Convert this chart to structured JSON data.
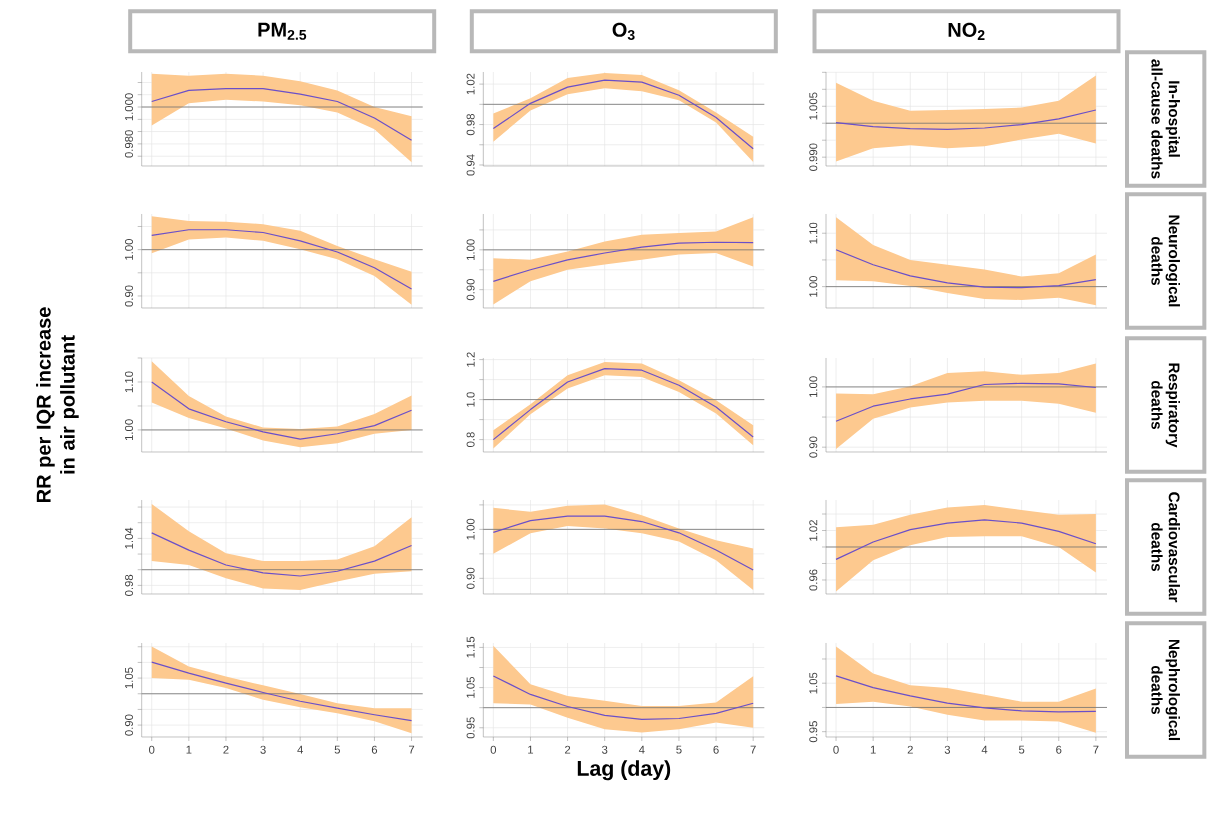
{
  "chart_data": [
    {
      "type": "line",
      "title": "PM$_{2.5}$",
      "x": [
        0,
        1,
        2,
        3,
        4,
        5,
        6,
        7
      ],
      "xlim": [
        -0.27,
        7.3
      ],
      "xticks": [
        0,
        1,
        2,
        3,
        4,
        5,
        6,
        7
      ],
      "ylim": [
        0.968,
        1.019
      ],
      "yticks": [
        {
          "value": 0.9733,
          "label": null
        },
        {
          "value": 0.98,
          "label": "0.980"
        },
        {
          "value": 0.9867,
          "label": null
        },
        {
          "value": 0.9933,
          "label": null
        },
        {
          "value": 1,
          "label": "1.000"
        },
        {
          "value": 1.0067,
          "label": null
        },
        {
          "value": 1.0133,
          "label": null
        }
      ],
      "grid": true,
      "tick_labels": "y",
      "marker": "none",
      "ref_lines": [
        {
          "axis": "y",
          "value": 1,
          "color": "#707070"
        }
      ],
      "series": [
        {
          "color": "#6a4fc9",
          "values": [
            1.003,
            1.009,
            1.01,
            1.01,
            1.007,
            1.003,
            0.994,
            0.982
          ],
          "lower": [
            0.99,
            1.002,
            1.004,
            1.003,
            1.001,
            0.997,
            0.988,
            0.97
          ],
          "upper": [
            1.018,
            1.017,
            1.018,
            1.017,
            1.014,
            1.009,
            1.0,
            0.995
          ]
        }
      ]
    },
    {
      "type": "line",
      "title": "O$_{3}$",
      "x": [
        0,
        1,
        2,
        3,
        4,
        5,
        6,
        7
      ],
      "xlim": [
        -0.27,
        7.3
      ],
      "xticks": [
        0,
        1,
        2,
        3,
        4,
        5,
        6,
        7
      ],
      "ylim": [
        0.939,
        1.032
      ],
      "yticks": [
        {
          "value": 0.94,
          "label": "0.94"
        },
        {
          "value": 0.96,
          "label": null
        },
        {
          "value": 0.98,
          "label": "0.98"
        },
        {
          "value": 1,
          "label": null
        },
        {
          "value": 1.02,
          "label": "1.02"
        }
      ],
      "grid": true,
      "tick_labels": "y",
      "marker": "none",
      "ref_lines": [
        {
          "axis": "y",
          "value": 1,
          "color": "#707070"
        }
      ],
      "series": [
        {
          "color": "#6a4fc9",
          "values": [
            0.976,
            1.001,
            1.017,
            1.024,
            1.022,
            1.009,
            0.987,
            0.956
          ],
          "lower": [
            0.963,
            0.994,
            1.01,
            1.016,
            1.013,
            1.004,
            0.982,
            0.943
          ],
          "upper": [
            0.991,
            1.006,
            1.026,
            1.031,
            1.029,
            1.014,
            0.992,
            0.968
          ]
        }
      ]
    },
    {
      "type": "line",
      "title": "NO$_{2}$",
      "y2label": "In-hospital all-cause deaths",
      "x": [
        0,
        1,
        2,
        3,
        4,
        5,
        6,
        7
      ],
      "xlim": [
        -0.27,
        7.3
      ],
      "xticks": [
        0,
        1,
        2,
        3,
        4,
        5,
        6,
        7
      ],
      "ylim": [
        0.9874,
        1.0151
      ],
      "yticks": [
        {
          "value": 0.99,
          "label": "0.990"
        },
        {
          "value": 0.995,
          "label": null
        },
        {
          "value": 1,
          "label": null
        },
        {
          "value": 1.005,
          "label": "1.005"
        },
        {
          "value": 1.01,
          "label": null
        },
        {
          "value": 1.015,
          "label": null
        }
      ],
      "grid": true,
      "tick_labels": "y",
      "marker": "none",
      "ref_lines": [
        {
          "axis": "y",
          "value": 1,
          "color": "#707070"
        }
      ],
      "series": [
        {
          "color": "#6a4fc9",
          "values": [
            1.0002,
            0.999,
            0.9984,
            0.9982,
            0.9986,
            0.9996,
            1.0013,
            1.0039
          ],
          "lower": [
            0.9887,
            0.9926,
            0.9935,
            0.9926,
            0.9932,
            0.9952,
            0.9969,
            0.994
          ],
          "upper": [
            1.0119,
            1.0066,
            1.0037,
            1.0039,
            1.0042,
            1.0046,
            1.0066,
            1.0141
          ]
        }
      ]
    },
    {
      "type": "line",
      "x": [
        0,
        1,
        2,
        3,
        4,
        5,
        6,
        7
      ],
      "xlim": [
        -0.27,
        7.3
      ],
      "xticks": [
        0,
        1,
        2,
        3,
        4,
        5,
        6,
        7
      ],
      "ylim": [
        0.874,
        1.077
      ],
      "yticks": [
        {
          "value": 0.9,
          "label": "0.90"
        },
        {
          "value": 0.95,
          "label": null
        },
        {
          "value": 1,
          "label": "1.00"
        },
        {
          "value": 1.05,
          "label": null
        }
      ],
      "grid": true,
      "tick_labels": "y",
      "marker": "none",
      "ref_lines": [
        {
          "axis": "y",
          "value": 1,
          "color": "#707070"
        }
      ],
      "series": [
        {
          "color": "#6a4fc9",
          "values": [
            1.031,
            1.043,
            1.043,
            1.037,
            1.019,
            0.995,
            0.961,
            0.915
          ],
          "lower": [
            0.992,
            1.022,
            1.026,
            1.019,
            1.001,
            0.979,
            0.943,
            0.881
          ],
          "upper": [
            1.072,
            1.062,
            1.06,
            1.055,
            1.041,
            1.008,
            0.979,
            0.952
          ]
        }
      ]
    },
    {
      "type": "line",
      "x": [
        0,
        1,
        2,
        3,
        4,
        5,
        6,
        7
      ],
      "xlim": [
        -0.27,
        7.3
      ],
      "xticks": [
        0,
        1,
        2,
        3,
        4,
        5,
        6,
        7
      ],
      "ylim": [
        0.854,
        1.09
      ],
      "yticks": [
        {
          "value": 0.9,
          "label": "0.90"
        },
        {
          "value": 0.95,
          "label": null
        },
        {
          "value": 1,
          "label": "1.00"
        },
        {
          "value": 1.05,
          "label": null
        }
      ],
      "grid": true,
      "tick_labels": "y",
      "marker": "none",
      "ref_lines": [
        {
          "axis": "y",
          "value": 1,
          "color": "#707070"
        }
      ],
      "series": [
        {
          "color": "#6a4fc9",
          "values": [
            0.921,
            0.95,
            0.975,
            0.992,
            1.007,
            1.017,
            1.019,
            1.018
          ],
          "lower": [
            0.863,
            0.921,
            0.95,
            0.963,
            0.975,
            0.988,
            0.992,
            0.958
          ],
          "upper": [
            0.979,
            0.975,
            0.996,
            1.021,
            1.038,
            1.042,
            1.046,
            1.082
          ]
        }
      ]
    },
    {
      "type": "line",
      "y2label": "Neurological deaths",
      "x": [
        0,
        1,
        2,
        3,
        4,
        5,
        6,
        7
      ],
      "xlim": [
        -0.27,
        7.3
      ],
      "xticks": [
        0,
        1,
        2,
        3,
        4,
        5,
        6,
        7
      ],
      "ylim": [
        0.96,
        1.136
      ],
      "yticks": [
        {
          "value": 1,
          "label": "1.00"
        },
        {
          "value": 1.05,
          "label": null
        },
        {
          "value": 1.1,
          "label": "1.10"
        }
      ],
      "grid": true,
      "tick_labels": "y",
      "marker": "none",
      "ref_lines": [
        {
          "axis": "y",
          "value": 1,
          "color": "#707070"
        }
      ],
      "series": [
        {
          "color": "#6a4fc9",
          "values": [
            1.069,
            1.041,
            1.02,
            1.007,
            0.999,
            0.998,
            1.002,
            1.013
          ],
          "lower": [
            1.012,
            1.01,
            1.001,
            0.988,
            0.977,
            0.975,
            0.979,
            0.965
          ],
          "upper": [
            1.13,
            1.078,
            1.05,
            1.041,
            1.032,
            1.019,
            1.025,
            1.06
          ]
        }
      ]
    },
    {
      "type": "line",
      "ylabel": "RR per IQR increase in air pollutant",
      "x": [
        0,
        1,
        2,
        3,
        4,
        5,
        6,
        7
      ],
      "xlim": [
        -0.27,
        7.3
      ],
      "xticks": [
        0,
        1,
        2,
        3,
        4,
        5,
        6,
        7
      ],
      "ylim": [
        0.954,
        1.15
      ],
      "yticks": [
        {
          "value": 1,
          "label": "1.00"
        },
        {
          "value": 1.05,
          "label": null
        },
        {
          "value": 1.1,
          "label": "1.10"
        },
        {
          "value": 1.15,
          "label": null
        }
      ],
      "grid": true,
      "tick_labels": "y",
      "marker": "none",
      "ref_lines": [
        {
          "axis": "y",
          "value": 1,
          "color": "#707070"
        }
      ],
      "series": [
        {
          "color": "#6a4fc9",
          "values": [
            1.1,
            1.044,
            1.017,
            0.996,
            0.981,
            0.992,
            1.009,
            1.041
          ],
          "lower": [
            1.057,
            1.025,
            1.003,
            0.978,
            0.964,
            0.972,
            0.992,
            1.0
          ],
          "upper": [
            1.143,
            1.071,
            1.028,
            1.005,
            1.002,
            1.007,
            1.033,
            1.072
          ]
        }
      ]
    },
    {
      "type": "line",
      "x": [
        0,
        1,
        2,
        3,
        4,
        5,
        6,
        7
      ],
      "xlim": [
        -0.27,
        7.3
      ],
      "xticks": [
        0,
        1,
        2,
        3,
        4,
        5,
        6,
        7
      ],
      "ylim": [
        0.738,
        1.208
      ],
      "yticks": [
        {
          "value": 0.8,
          "label": "0.8"
        },
        {
          "value": 0.9,
          "label": null
        },
        {
          "value": 1,
          "label": "1.0"
        },
        {
          "value": 1.1,
          "label": null
        },
        {
          "value": 1.2,
          "label": "1.2"
        }
      ],
      "grid": true,
      "tick_labels": "y",
      "marker": "none",
      "ref_lines": [
        {
          "axis": "y",
          "value": 1,
          "color": "#707070"
        }
      ],
      "series": [
        {
          "color": "#6a4fc9",
          "values": [
            0.8,
            0.95,
            1.088,
            1.155,
            1.147,
            1.072,
            0.963,
            0.813
          ],
          "lower": [
            0.755,
            0.927,
            1.055,
            1.122,
            1.113,
            1.038,
            0.93,
            0.772
          ],
          "upper": [
            0.847,
            0.977,
            1.122,
            1.188,
            1.18,
            1.097,
            0.997,
            0.872
          ]
        }
      ]
    },
    {
      "type": "line",
      "y2label": "Respiratory deaths",
      "x": [
        0,
        1,
        2,
        3,
        4,
        5,
        6,
        7
      ],
      "xlim": [
        -0.27,
        7.3
      ],
      "xticks": [
        0,
        1,
        2,
        3,
        4,
        5,
        6,
        7
      ],
      "ylim": [
        0.892,
        1.048
      ],
      "yticks": [
        {
          "value": 0.9,
          "label": "0.90"
        },
        {
          "value": 0.95,
          "label": null
        },
        {
          "value": 1,
          "label": "1.00"
        }
      ],
      "grid": true,
      "tick_labels": "y",
      "marker": "none",
      "ref_lines": [
        {
          "axis": "y",
          "value": 1,
          "color": "#707070"
        }
      ],
      "series": [
        {
          "color": "#6a4fc9",
          "values": [
            0.943,
            0.968,
            0.98,
            0.988,
            1.004,
            1.006,
            1.005,
            0.999
          ],
          "lower": [
            0.897,
            0.947,
            0.966,
            0.974,
            0.977,
            0.977,
            0.972,
            0.957
          ],
          "upper": [
            0.989,
            0.988,
            1.001,
            1.023,
            1.026,
            1.02,
            1.023,
            1.039
          ]
        }
      ]
    },
    {
      "type": "line",
      "x": [
        0,
        1,
        2,
        3,
        4,
        5,
        6,
        7
      ],
      "xlim": [
        -0.27,
        7.3
      ],
      "xticks": [
        0,
        1,
        2,
        3,
        4,
        5,
        6,
        7
      ],
      "ylim": [
        0.969,
        1.089
      ],
      "yticks": [
        {
          "value": 0.98,
          "label": "0.98"
        },
        {
          "value": 1,
          "label": null
        },
        {
          "value": 1.02,
          "label": null
        },
        {
          "value": 1.04,
          "label": "1.04"
        },
        {
          "value": 1.06,
          "label": null
        },
        {
          "value": 1.08,
          "label": null
        }
      ],
      "grid": true,
      "tick_labels": "y",
      "marker": "none",
      "ref_lines": [
        {
          "axis": "y",
          "value": 1,
          "color": "#707070"
        }
      ],
      "series": [
        {
          "color": "#6a4fc9",
          "values": [
            1.047,
            1.025,
            1.006,
            0.996,
            0.992,
            0.998,
            1.011,
            1.031
          ],
          "lower": [
            1.011,
            1.006,
            0.989,
            0.976,
            0.974,
            0.985,
            0.995,
            0.998
          ],
          "upper": [
            1.084,
            1.049,
            1.021,
            1.011,
            1.011,
            1.013,
            1.03,
            1.067
          ]
        }
      ]
    },
    {
      "type": "line",
      "x": [
        0,
        1,
        2,
        3,
        4,
        5,
        6,
        7
      ],
      "xlim": [
        -0.27,
        7.3
      ],
      "xticks": [
        0,
        1,
        2,
        3,
        4,
        5,
        6,
        7
      ],
      "ylim": [
        0.868,
        1.06
      ],
      "yticks": [
        {
          "value": 0.9,
          "label": "0.90"
        },
        {
          "value": 0.95,
          "label": null
        },
        {
          "value": 1,
          "label": "1.00"
        },
        {
          "value": 1.05,
          "label": null
        }
      ],
      "grid": true,
      "tick_labels": "y",
      "marker": "none",
      "ref_lines": [
        {
          "axis": "y",
          "value": 1,
          "color": "#707070"
        }
      ],
      "series": [
        {
          "color": "#6a4fc9",
          "values": [
            0.994,
            1.018,
            1.027,
            1.027,
            1.016,
            0.993,
            0.958,
            0.917
          ],
          "lower": [
            0.95,
            0.992,
            1.007,
            1.002,
            0.992,
            0.975,
            0.937,
            0.876
          ],
          "upper": [
            1.044,
            1.036,
            1.048,
            1.051,
            1.029,
            1.002,
            0.978,
            0.961
          ]
        }
      ]
    },
    {
      "type": "line",
      "y2label": "Cardiovascular deaths",
      "x": [
        0,
        1,
        2,
        3,
        4,
        5,
        6,
        7
      ],
      "xlim": [
        -0.27,
        7.3
      ],
      "xticks": [
        0,
        1,
        2,
        3,
        4,
        5,
        6,
        7
      ],
      "ylim": [
        0.943,
        1.057
      ],
      "yticks": [
        {
          "value": 0.96,
          "label": "0.96"
        },
        {
          "value": 0.98,
          "label": null
        },
        {
          "value": 1,
          "label": null
        },
        {
          "value": 1.02,
          "label": "1.02"
        },
        {
          "value": 1.04,
          "label": null
        }
      ],
      "grid": true,
      "tick_labels": "y",
      "marker": "none",
      "ref_lines": [
        {
          "axis": "y",
          "value": 1,
          "color": "#707070"
        }
      ],
      "series": [
        {
          "color": "#6a4fc9",
          "values": [
            0.985,
            1.006,
            1.021,
            1.029,
            1.033,
            1.029,
            1.019,
            1.004
          ],
          "lower": [
            0.946,
            0.984,
            1.002,
            1.012,
            1.013,
            1.013,
            1.0,
            0.969
          ],
          "upper": [
            1.024,
            1.027,
            1.039,
            1.048,
            1.051,
            1.045,
            1.039,
            1.04
          ]
        }
      ]
    },
    {
      "type": "line",
      "x": [
        0,
        1,
        2,
        3,
        4,
        5,
        6,
        7
      ],
      "xlim": [
        -0.27,
        7.3
      ],
      "xticks": [
        0,
        1,
        2,
        3,
        4,
        5,
        6,
        7
      ],
      "ylim": [
        0.862,
        1.162
      ],
      "yticks": [
        {
          "value": 0.9,
          "label": "0.90"
        },
        {
          "value": 0.95,
          "label": null
        },
        {
          "value": 1,
          "label": null
        },
        {
          "value": 1.05,
          "label": "1.05"
        },
        {
          "value": 1.1,
          "label": null
        },
        {
          "value": 1.15,
          "label": null
        }
      ],
      "grid": true,
      "marker": "none",
      "ref_lines": [
        {
          "axis": "y",
          "value": 1,
          "color": "#707070"
        }
      ],
      "series": [
        {
          "color": "#6a4fc9",
          "values": [
            1.101,
            1.066,
            1.034,
            1.004,
            0.976,
            0.954,
            0.933,
            0.914
          ],
          "lower": [
            1.05,
            1.045,
            1.018,
            0.981,
            0.957,
            0.938,
            0.912,
            0.874
          ],
          "upper": [
            1.151,
            1.087,
            1.055,
            1.027,
            0.999,
            0.97,
            0.954,
            0.954
          ]
        }
      ]
    },
    {
      "type": "line",
      "xlabel": "Lag (day)",
      "x": [
        0,
        1,
        2,
        3,
        4,
        5,
        6,
        7
      ],
      "xlim": [
        -0.27,
        7.3
      ],
      "xticks": [
        0,
        1,
        2,
        3,
        4,
        5,
        6,
        7
      ],
      "ylim": [
        0.927,
        1.161
      ],
      "yticks": [
        {
          "value": 0.95,
          "label": "0.95"
        },
        {
          "value": 1,
          "label": null
        },
        {
          "value": 1.05,
          "label": "1.05"
        },
        {
          "value": 1.1,
          "label": null
        },
        {
          "value": 1.15,
          "label": "1.15"
        }
      ],
      "grid": true,
      "marker": "none",
      "ref_lines": [
        {
          "axis": "y",
          "value": 1,
          "color": "#707070"
        }
      ],
      "series": [
        {
          "color": "#6a4fc9",
          "values": [
            1.079,
            1.033,
            1.003,
            0.981,
            0.971,
            0.973,
            0.986,
            1.011
          ],
          "lower": [
            1.011,
            1.008,
            0.975,
            0.946,
            0.938,
            0.946,
            0.963,
            0.95
          ],
          "upper": [
            1.154,
            1.058,
            1.029,
            1.017,
            1.004,
            1.004,
            1.013,
            1.078
          ]
        }
      ]
    },
    {
      "type": "line",
      "y2label": "Nephrological deaths",
      "x": [
        0,
        1,
        2,
        3,
        4,
        5,
        6,
        7
      ],
      "xlim": [
        -0.27,
        7.3
      ],
      "xticks": [
        0,
        1,
        2,
        3,
        4,
        5,
        6,
        7
      ],
      "ylim": [
        0.939,
        1.133
      ],
      "yticks": [
        {
          "value": 0.95,
          "label": "0.95"
        },
        {
          "value": 1,
          "label": null
        },
        {
          "value": 1.05,
          "label": "1.05"
        },
        {
          "value": 1.1,
          "label": null
        }
      ],
      "grid": true,
      "marker": "none",
      "ref_lines": [
        {
          "axis": "y",
          "value": 1,
          "color": "#707070"
        }
      ],
      "series": [
        {
          "color": "#6a4fc9",
          "values": [
            1.065,
            1.041,
            1.024,
            1.009,
            0.999,
            0.993,
            0.991,
            0.992
          ],
          "lower": [
            1.007,
            1.012,
            1.002,
            0.985,
            0.973,
            0.973,
            0.971,
            0.948
          ],
          "upper": [
            1.126,
            1.07,
            1.046,
            1.04,
            1.026,
            1.012,
            1.012,
            1.039
          ]
        }
      ]
    }
  ]
}
